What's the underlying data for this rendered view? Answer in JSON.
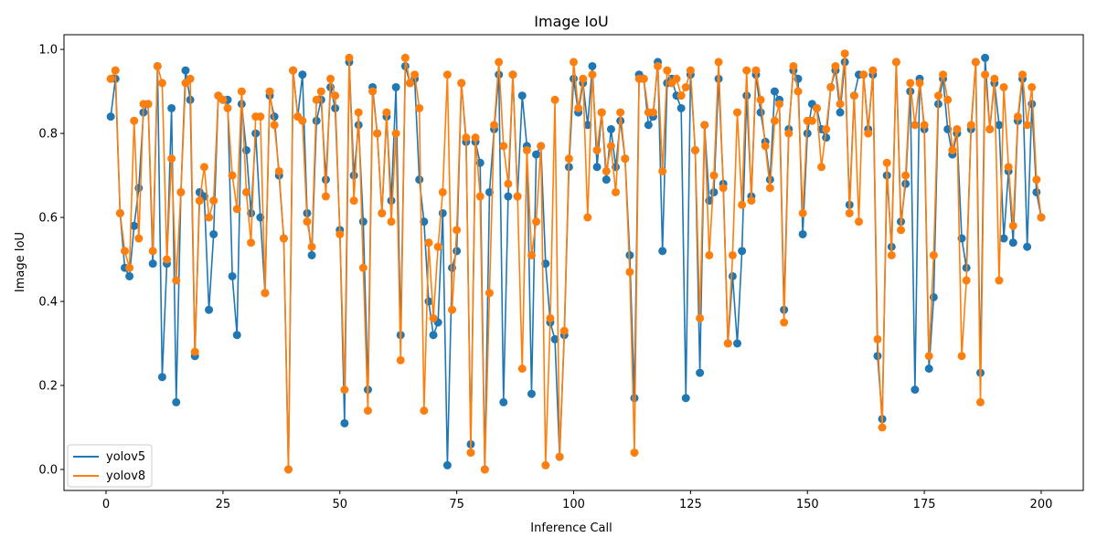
{
  "chart_data": {
    "type": "line",
    "title": "Image IoU",
    "xlabel": "Inference Call",
    "ylabel": "Image IoU",
    "xlim": [
      -9,
      209
    ],
    "ylim": [
      -0.05,
      1.035
    ],
    "xticks": [
      0,
      25,
      50,
      75,
      100,
      125,
      150,
      175,
      200
    ],
    "yticks": [
      0.0,
      0.2,
      0.4,
      0.6,
      0.8,
      1.0
    ],
    "xtick_labels": [
      "0",
      "25",
      "50",
      "75",
      "100",
      "125",
      "150",
      "175",
      "200"
    ],
    "ytick_labels": [
      "0.0",
      "0.2",
      "0.4",
      "0.6",
      "0.8",
      "1.0"
    ],
    "grid": false,
    "legend_position": "lower-left",
    "markers": true,
    "series": [
      {
        "name": "yolov5",
        "color": "#1f77b4",
        "values": [
          0.84,
          0.93,
          0.61,
          0.48,
          0.46,
          0.58,
          0.67,
          0.85,
          0.87,
          0.49,
          0.96,
          0.22,
          0.49,
          0.86,
          0.16,
          0.66,
          0.95,
          0.88,
          0.27,
          0.66,
          0.65,
          0.38,
          0.56,
          0.89,
          0.88,
          0.88,
          0.46,
          0.32,
          0.87,
          0.76,
          0.61,
          0.8,
          0.6,
          0.42,
          0.89,
          0.84,
          0.7,
          0.55,
          0.0,
          0.95,
          0.84,
          0.94,
          0.61,
          0.51,
          0.83,
          0.88,
          0.69,
          0.91,
          0.86,
          0.57,
          0.11,
          0.97,
          0.7,
          0.82,
          0.59,
          0.19,
          0.91,
          0.8,
          0.61,
          0.84,
          0.64,
          0.91,
          0.32,
          0.96,
          0.92,
          0.93,
          0.69,
          0.59,
          0.4,
          0.32,
          0.35,
          0.61,
          0.01,
          0.48,
          0.52,
          0.92,
          0.78,
          0.06,
          0.78,
          0.73,
          0.0,
          0.66,
          0.81,
          0.94,
          0.16,
          0.65,
          0.94,
          0.65,
          0.89,
          0.77,
          0.18,
          0.75,
          0.77,
          0.49,
          0.35,
          0.31,
          0.03,
          0.32,
          0.72,
          0.93,
          0.85,
          0.92,
          0.82,
          0.96,
          0.72,
          0.85,
          0.69,
          0.81,
          0.72,
          0.83,
          0.74,
          0.51,
          0.17,
          0.94,
          0.93,
          0.82,
          0.84,
          0.97,
          0.52,
          0.92,
          0.93,
          0.89,
          0.86,
          0.17,
          0.94,
          0.76,
          0.23,
          0.82,
          0.64,
          0.66,
          0.93,
          0.68,
          0.3,
          0.46,
          0.3,
          0.52,
          0.89,
          0.65,
          0.94,
          0.85,
          0.78,
          0.69,
          0.9,
          0.88,
          0.38,
          0.81,
          0.95,
          0.93,
          0.56,
          0.8,
          0.87,
          0.86,
          0.81,
          0.79,
          0.91,
          0.95,
          0.85,
          0.97,
          0.63,
          0.89,
          0.94,
          0.94,
          0.81,
          0.94,
          0.27,
          0.12,
          0.7,
          0.53,
          0.97,
          0.59,
          0.68,
          0.9,
          0.19,
          0.93,
          0.81,
          0.24,
          0.41,
          0.87,
          0.93,
          0.81,
          0.75,
          0.8,
          0.55,
          0.48,
          0.81,
          0.97,
          0.23,
          0.98,
          0.81,
          0.92,
          0.82,
          0.55,
          0.71,
          0.54,
          0.83,
          0.93,
          0.53,
          0.87,
          0.66,
          0.6
        ]
      },
      {
        "name": "yolov8",
        "color": "#ff7f0e",
        "values": [
          0.93,
          0.95,
          0.61,
          0.52,
          0.48,
          0.83,
          0.55,
          0.87,
          0.87,
          0.52,
          0.96,
          0.92,
          0.5,
          0.74,
          0.45,
          0.66,
          0.92,
          0.93,
          0.28,
          0.64,
          0.72,
          0.6,
          0.64,
          0.89,
          0.88,
          0.86,
          0.7,
          0.62,
          0.9,
          0.66,
          0.54,
          0.84,
          0.84,
          0.42,
          0.9,
          0.82,
          0.71,
          0.55,
          0.0,
          0.95,
          0.84,
          0.83,
          0.59,
          0.53,
          0.88,
          0.9,
          0.65,
          0.93,
          0.89,
          0.56,
          0.19,
          0.98,
          0.64,
          0.85,
          0.48,
          0.14,
          0.9,
          0.8,
          0.61,
          0.85,
          0.59,
          0.8,
          0.26,
          0.98,
          0.92,
          0.94,
          0.86,
          0.14,
          0.54,
          0.36,
          0.53,
          0.66,
          0.94,
          0.38,
          0.57,
          0.92,
          0.79,
          0.04,
          0.79,
          0.65,
          0.0,
          0.42,
          0.82,
          0.97,
          0.77,
          0.68,
          0.94,
          0.65,
          0.24,
          0.76,
          0.51,
          0.59,
          0.77,
          0.01,
          0.36,
          0.88,
          0.03,
          0.33,
          0.74,
          0.97,
          0.86,
          0.93,
          0.6,
          0.94,
          0.76,
          0.85,
          0.71,
          0.77,
          0.66,
          0.85,
          0.74,
          0.47,
          0.04,
          0.93,
          0.93,
          0.85,
          0.85,
          0.96,
          0.71,
          0.95,
          0.92,
          0.93,
          0.89,
          0.91,
          0.95,
          0.76,
          0.36,
          0.82,
          0.51,
          0.7,
          0.97,
          0.67,
          0.3,
          0.51,
          0.85,
          0.63,
          0.95,
          0.64,
          0.95,
          0.88,
          0.77,
          0.67,
          0.83,
          0.87,
          0.35,
          0.8,
          0.96,
          0.9,
          0.61,
          0.83,
          0.83,
          0.86,
          0.72,
          0.81,
          0.91,
          0.96,
          0.87,
          0.99,
          0.61,
          0.89,
          0.59,
          0.94,
          0.8,
          0.95,
          0.31,
          0.1,
          0.73,
          0.51,
          0.97,
          0.57,
          0.7,
          0.92,
          0.82,
          0.92,
          0.82,
          0.27,
          0.51,
          0.89,
          0.94,
          0.88,
          0.76,
          0.81,
          0.27,
          0.45,
          0.82,
          0.97,
          0.16,
          0.94,
          0.81,
          0.93,
          0.45,
          0.91,
          0.72,
          0.58,
          0.84,
          0.94,
          0.82,
          0.91,
          0.69,
          0.6
        ]
      }
    ]
  }
}
